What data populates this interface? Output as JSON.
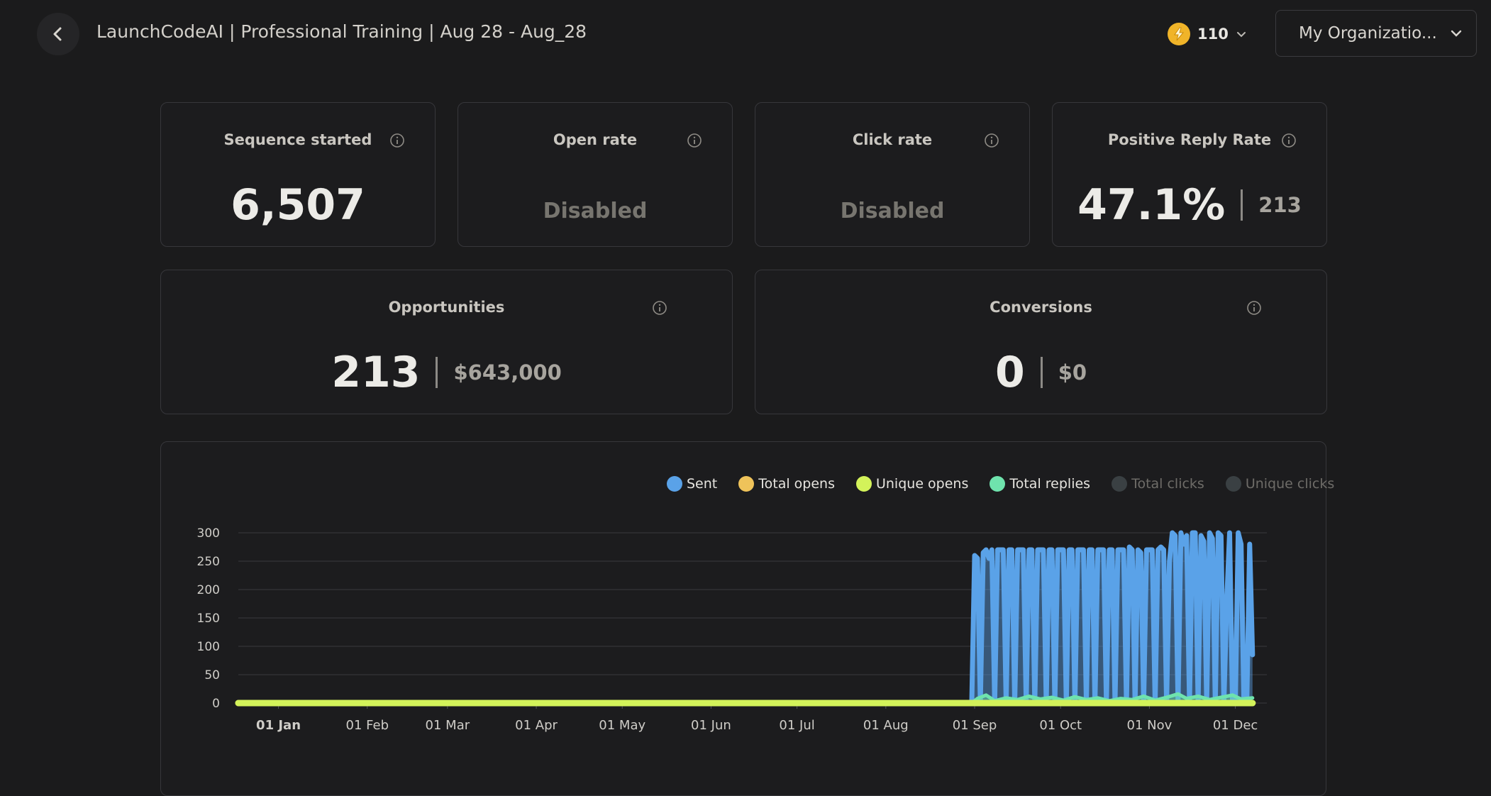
{
  "header": {
    "title": "LaunchCodeAI | Professional Training | Aug 28 - Aug_28",
    "back_icon": "chevron-left-icon",
    "credits": "110",
    "credits_icon": "lightning-icon",
    "org_label": "My Organizatio...",
    "accent": "#f0b429"
  },
  "stats": {
    "sequence_started": {
      "title": "Sequence started",
      "value": "6,507"
    },
    "open_rate": {
      "title": "Open rate",
      "value": "Disabled"
    },
    "click_rate": {
      "title": "Click rate",
      "value": "Disabled"
    },
    "positive_reply_rate": {
      "title": "Positive Reply Rate",
      "value": "47.1%",
      "sub": "213"
    },
    "opportunities": {
      "title": "Opportunities",
      "value": "213",
      "sub": "$643,000"
    },
    "conversions": {
      "title": "Conversions",
      "value": "0",
      "sub": "$0"
    }
  },
  "legend": [
    {
      "label": "Sent",
      "color": "#5aa2e8",
      "active": true
    },
    {
      "label": "Total opens",
      "color": "#efc35a",
      "active": true
    },
    {
      "label": "Unique opens",
      "color": "#d3f25a",
      "active": true
    },
    {
      "label": "Total replies",
      "color": "#6fe3ad",
      "active": true
    },
    {
      "label": "Total clicks",
      "color": "#3a4043",
      "active": false
    },
    {
      "label": "Unique clicks",
      "color": "#3a4043",
      "active": false
    }
  ],
  "chart_data": {
    "type": "area",
    "x_range": [
      "2024-12-18",
      "2025-12-12"
    ],
    "ylim": [
      0,
      300
    ],
    "y_ticks": [
      0,
      50,
      100,
      150,
      200,
      250,
      300
    ],
    "x_ticks": [
      "01 Jan",
      "01 Feb",
      "01 Mar",
      "01 Apr",
      "01 May",
      "01 Jun",
      "01 Jul",
      "01 Aug",
      "01 Sep",
      "01 Oct",
      "01 Nov",
      "01 Dec"
    ],
    "x_tick_dates": [
      "2025-01-01",
      "2025-02-01",
      "2025-03-01",
      "2025-04-01",
      "2025-05-01",
      "2025-06-01",
      "2025-07-01",
      "2025-08-01",
      "2025-09-01",
      "2025-10-01",
      "2025-11-01",
      "2025-12-01"
    ],
    "grid": true,
    "legend_position": "top-right",
    "series": [
      {
        "name": "Sent",
        "color": "#5aa2e8",
        "points": [
          [
            "2025-08-31",
            0
          ],
          [
            "2025-09-01",
            260
          ],
          [
            "2025-09-02",
            255
          ],
          [
            "2025-09-03",
            0
          ],
          [
            "2025-09-04",
            265
          ],
          [
            "2025-09-05",
            270
          ],
          [
            "2025-09-06",
            255
          ],
          [
            "2025-09-07",
            270
          ],
          [
            "2025-09-08",
            0
          ],
          [
            "2025-09-09",
            270
          ],
          [
            "2025-09-10",
            270
          ],
          [
            "2025-09-11",
            270
          ],
          [
            "2025-09-12",
            0
          ],
          [
            "2025-09-13",
            270
          ],
          [
            "2025-09-14",
            270
          ],
          [
            "2025-09-15",
            0
          ],
          [
            "2025-09-16",
            270
          ],
          [
            "2025-09-17",
            270
          ],
          [
            "2025-09-18",
            270
          ],
          [
            "2025-09-19",
            0
          ],
          [
            "2025-09-20",
            270
          ],
          [
            "2025-09-21",
            270
          ],
          [
            "2025-09-22",
            0
          ],
          [
            "2025-09-23",
            270
          ],
          [
            "2025-09-24",
            270
          ],
          [
            "2025-09-25",
            270
          ],
          [
            "2025-09-26",
            0
          ],
          [
            "2025-09-27",
            270
          ],
          [
            "2025-09-28",
            270
          ],
          [
            "2025-09-29",
            0
          ],
          [
            "2025-09-30",
            270
          ],
          [
            "2025-10-01",
            270
          ],
          [
            "2025-10-02",
            270
          ],
          [
            "2025-10-03",
            0
          ],
          [
            "2025-10-04",
            270
          ],
          [
            "2025-10-05",
            270
          ],
          [
            "2025-10-06",
            0
          ],
          [
            "2025-10-07",
            270
          ],
          [
            "2025-10-08",
            270
          ],
          [
            "2025-10-09",
            270
          ],
          [
            "2025-10-10",
            0
          ],
          [
            "2025-10-11",
            270
          ],
          [
            "2025-10-12",
            270
          ],
          [
            "2025-10-13",
            0
          ],
          [
            "2025-10-14",
            270
          ],
          [
            "2025-10-15",
            270
          ],
          [
            "2025-10-16",
            270
          ],
          [
            "2025-10-17",
            0
          ],
          [
            "2025-10-18",
            270
          ],
          [
            "2025-10-19",
            270
          ],
          [
            "2025-10-20",
            0
          ],
          [
            "2025-10-21",
            270
          ],
          [
            "2025-10-22",
            270
          ],
          [
            "2025-10-23",
            270
          ],
          [
            "2025-10-24",
            0
          ],
          [
            "2025-10-25",
            275
          ],
          [
            "2025-10-26",
            270
          ],
          [
            "2025-10-27",
            0
          ],
          [
            "2025-10-28",
            270
          ],
          [
            "2025-10-29",
            265
          ],
          [
            "2025-10-30",
            0
          ],
          [
            "2025-10-31",
            270
          ],
          [
            "2025-11-01",
            270
          ],
          [
            "2025-11-02",
            270
          ],
          [
            "2025-11-03",
            0
          ],
          [
            "2025-11-04",
            270
          ],
          [
            "2025-11-05",
            275
          ],
          [
            "2025-11-06",
            270
          ],
          [
            "2025-11-07",
            0
          ],
          [
            "2025-11-08",
            250
          ],
          [
            "2025-11-09",
            300
          ],
          [
            "2025-11-10",
            295
          ],
          [
            "2025-11-11",
            0
          ],
          [
            "2025-11-12",
            300
          ],
          [
            "2025-11-13",
            280
          ],
          [
            "2025-11-14",
            295
          ],
          [
            "2025-11-15",
            0
          ],
          [
            "2025-11-16",
            300
          ],
          [
            "2025-11-17",
            300
          ],
          [
            "2025-11-18",
            0
          ],
          [
            "2025-11-19",
            295
          ],
          [
            "2025-11-20",
            285
          ],
          [
            "2025-11-21",
            0
          ],
          [
            "2025-11-22",
            300
          ],
          [
            "2025-11-23",
            290
          ],
          [
            "2025-11-24",
            0
          ],
          [
            "2025-11-25",
            300
          ],
          [
            "2025-11-26",
            295
          ],
          [
            "2025-11-27",
            0
          ],
          [
            "2025-11-28",
            180
          ],
          [
            "2025-11-29",
            300
          ],
          [
            "2025-11-30",
            0
          ],
          [
            "2025-12-01",
            0
          ],
          [
            "2025-12-02",
            300
          ],
          [
            "2025-12-03",
            280
          ],
          [
            "2025-12-04",
            0
          ],
          [
            "2025-12-05",
            0
          ],
          [
            "2025-12-06",
            280
          ],
          [
            "2025-12-07",
            85
          ]
        ]
      },
      {
        "name": "Total replies",
        "color": "#6fe3ad",
        "points": [
          [
            "2025-08-31",
            0
          ],
          [
            "2025-09-02",
            8
          ],
          [
            "2025-09-05",
            14
          ],
          [
            "2025-09-08",
            4
          ],
          [
            "2025-09-12",
            9
          ],
          [
            "2025-09-16",
            6
          ],
          [
            "2025-09-20",
            12
          ],
          [
            "2025-09-24",
            7
          ],
          [
            "2025-09-28",
            10
          ],
          [
            "2025-10-02",
            5
          ],
          [
            "2025-10-06",
            11
          ],
          [
            "2025-10-10",
            6
          ],
          [
            "2025-10-14",
            9
          ],
          [
            "2025-10-18",
            4
          ],
          [
            "2025-10-22",
            8
          ],
          [
            "2025-10-26",
            6
          ],
          [
            "2025-10-30",
            12
          ],
          [
            "2025-11-03",
            5
          ],
          [
            "2025-11-07",
            10
          ],
          [
            "2025-11-11",
            16
          ],
          [
            "2025-11-14",
            8
          ],
          [
            "2025-11-18",
            12
          ],
          [
            "2025-11-22",
            6
          ],
          [
            "2025-11-26",
            10
          ],
          [
            "2025-11-30",
            14
          ],
          [
            "2025-12-03",
            7
          ],
          [
            "2025-12-07",
            9
          ]
        ]
      },
      {
        "name": "Total opens",
        "color": "#efc35a",
        "points": [
          [
            "2024-12-18",
            0
          ],
          [
            "2025-12-07",
            0
          ]
        ]
      },
      {
        "name": "Unique opens",
        "color": "#d3f25a",
        "points": [
          [
            "2024-12-18",
            0
          ],
          [
            "2025-12-07",
            0
          ]
        ]
      }
    ]
  }
}
